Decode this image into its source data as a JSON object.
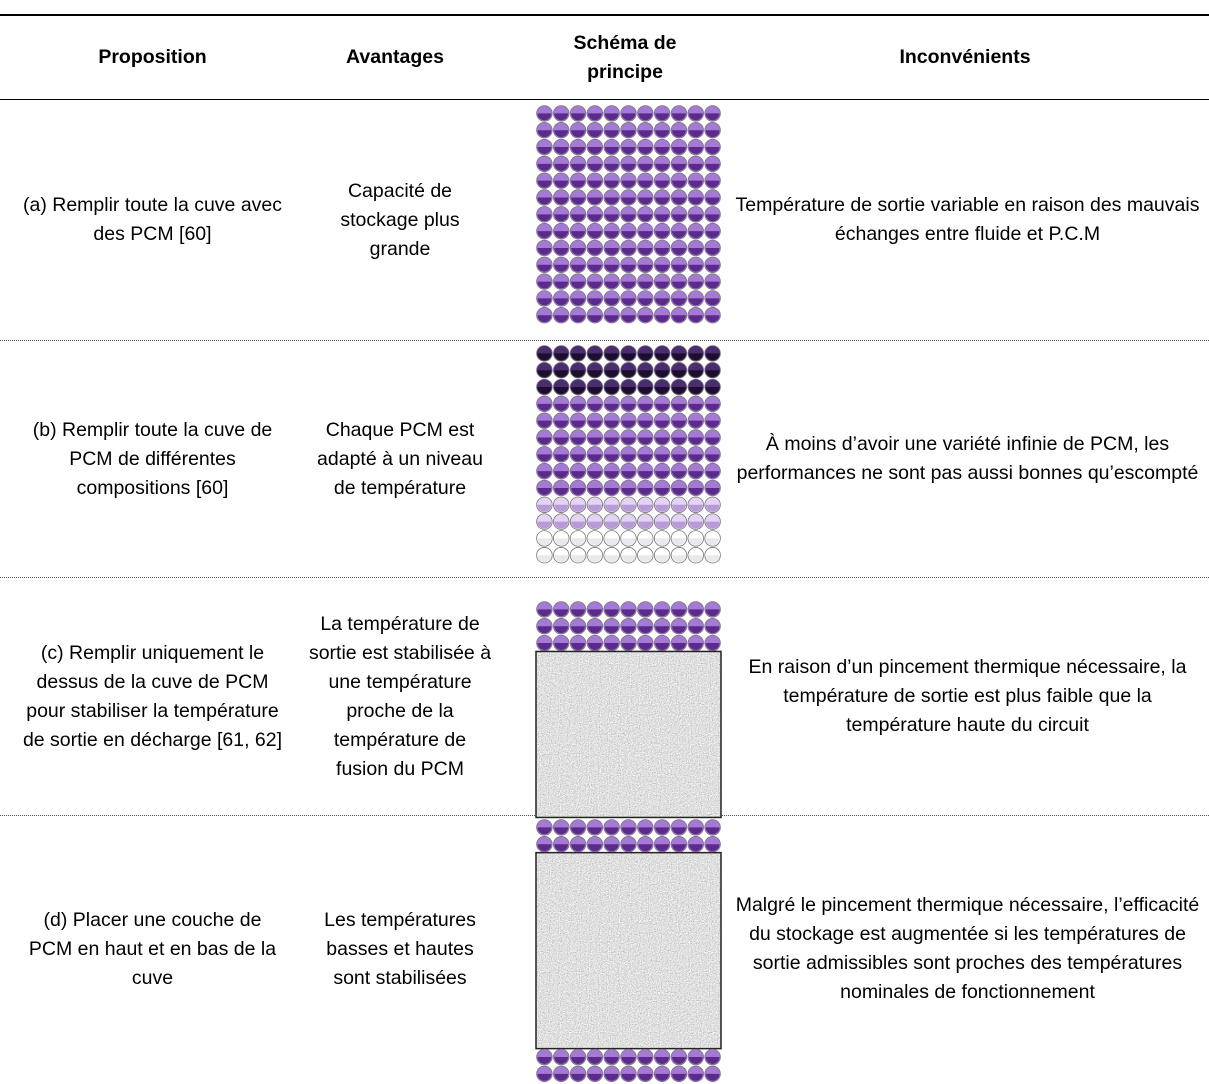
{
  "table": {
    "header": [
      "Proposition",
      "Avantages",
      "Schéma de principe",
      "Inconvénients"
    ],
    "rows": [
      {
        "proposition": "(a) Remplir toute la cuve avec des PCM [60]",
        "avantages": "Capacité de stockage plus grande",
        "inconvenients": "Température de sortie variable en raison des mauvais échanges entre fluide et P.C.M"
      },
      {
        "proposition": "(b) Remplir toute la cuve de PCM de différentes compositions [60]",
        "avantages": "Chaque PCM est adapté à un niveau de température",
        "inconvenients": "À moins d’avoir une variété infinie de PCM, les performances ne sont pas aussi bonnes qu’escompté"
      },
      {
        "proposition": "(c) Remplir uniquement le dessus de la cuve de PCM pour stabiliser la température de sortie en décharge [61, 62]",
        "avantages": "La température de sortie est stabilisée à une température proche de la température de fusion du PCM",
        "inconvenients": "En raison d’un pincement thermique nécessaire, la température de sortie est plus faible que la température haute du circuit"
      },
      {
        "proposition": "(d) Placer une couche de PCM en haut et en bas de la cuve",
        "avantages": "Les températures basses et hautes sont stabilisées",
        "inconvenients": "Malgré le pincement thermique nécessaire, l’efficacité du stockage est augmentée si les températures de sortie admissibles sont proches des températures nominales de fonctionnement"
      }
    ]
  }
}
